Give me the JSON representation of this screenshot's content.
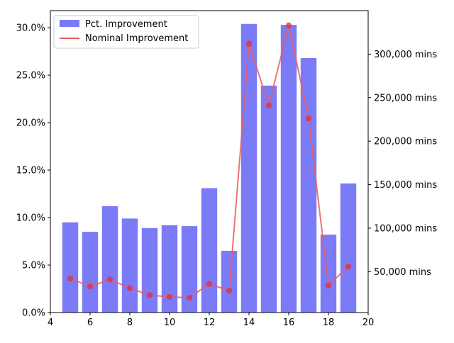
{
  "chart_data": {
    "type": "bar",
    "x": [
      5,
      6,
      7,
      8,
      9,
      10,
      11,
      12,
      13,
      14,
      15,
      16,
      17,
      18,
      19
    ],
    "series": [
      {
        "name": "Pct. Improvement",
        "type": "bar",
        "axis": "left",
        "color": "#7b7bf7",
        "values": [
          0.095,
          0.085,
          0.112,
          0.099,
          0.089,
          0.092,
          0.091,
          0.131,
          0.065,
          0.304,
          0.239,
          0.303,
          0.268,
          0.082,
          0.136
        ]
      },
      {
        "name": "Nominal Improvement",
        "type": "line",
        "axis": "right",
        "color": "#ee5a5a",
        "values": [
          42000,
          33000,
          41000,
          31000,
          23000,
          21000,
          20000,
          36000,
          28000,
          312000,
          241000,
          333000,
          226000,
          34000,
          56000
        ]
      }
    ],
    "xlim": [
      4,
      20
    ],
    "xticks": [
      "4",
      "6",
      "8",
      "10",
      "12",
      "14",
      "16",
      "18",
      "20"
    ],
    "y_left_lim": [
      0,
      0.318
    ],
    "y_left_ticks": [
      "0.0%",
      "5.0%",
      "10.0%",
      "15.0%",
      "20.0%",
      "25.0%",
      "30.0%"
    ],
    "y_right_lim": [
      3000,
      350000
    ],
    "y_right_ticks": [
      "50,000 mins",
      "100,000 mins",
      "150,000 mins",
      "200,000 mins",
      "250,000 mins",
      "300,000 mins"
    ],
    "legend_position": "top-left",
    "grid": false
  }
}
